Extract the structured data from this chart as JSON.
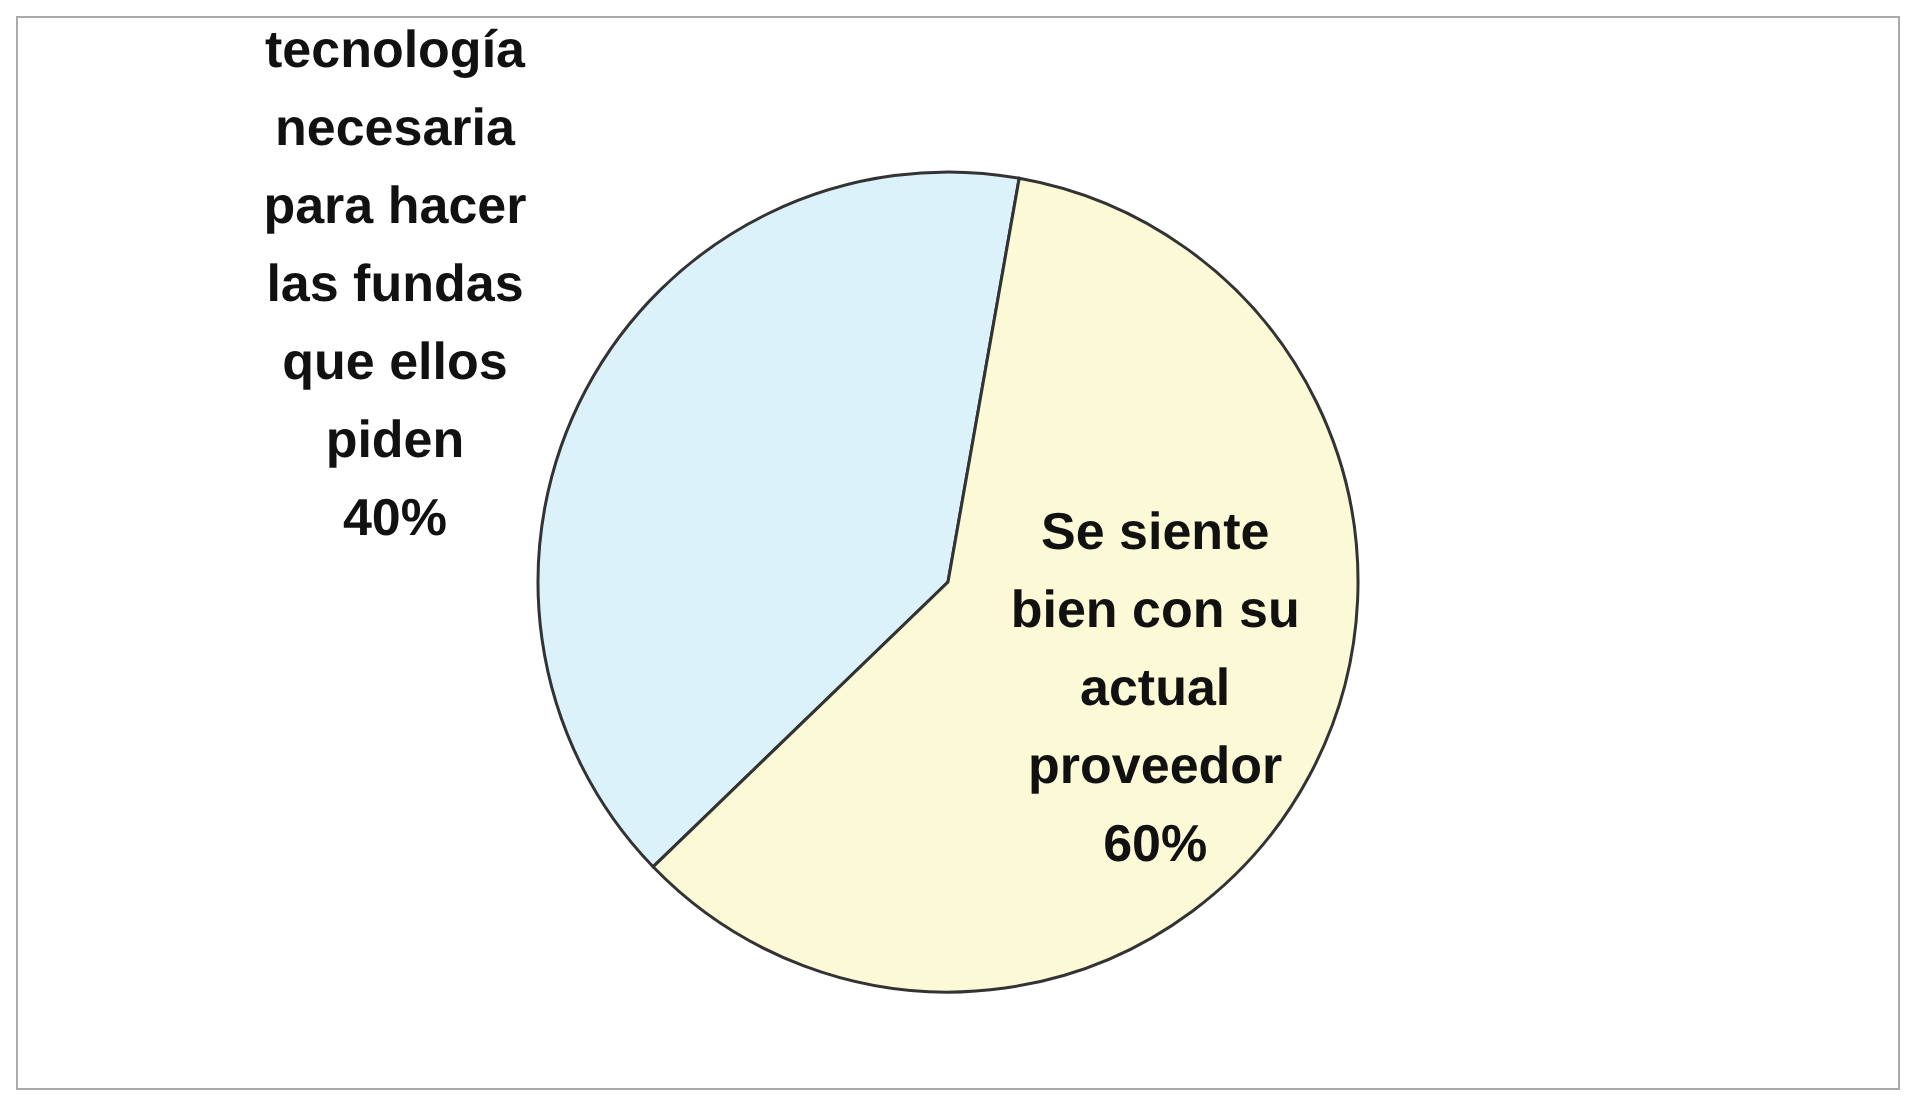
{
  "chart_data": {
    "type": "pie",
    "categories": [
      "tecnología necesaria para hacer las fundas que ellos piden",
      "Se siente bien con su actual proveedor"
    ],
    "values": [
      40,
      60
    ],
    "colors": [
      "#dcf2fa",
      "#fcfad6"
    ],
    "value_labels": [
      "40%",
      "60%"
    ],
    "legend": false
  }
}
